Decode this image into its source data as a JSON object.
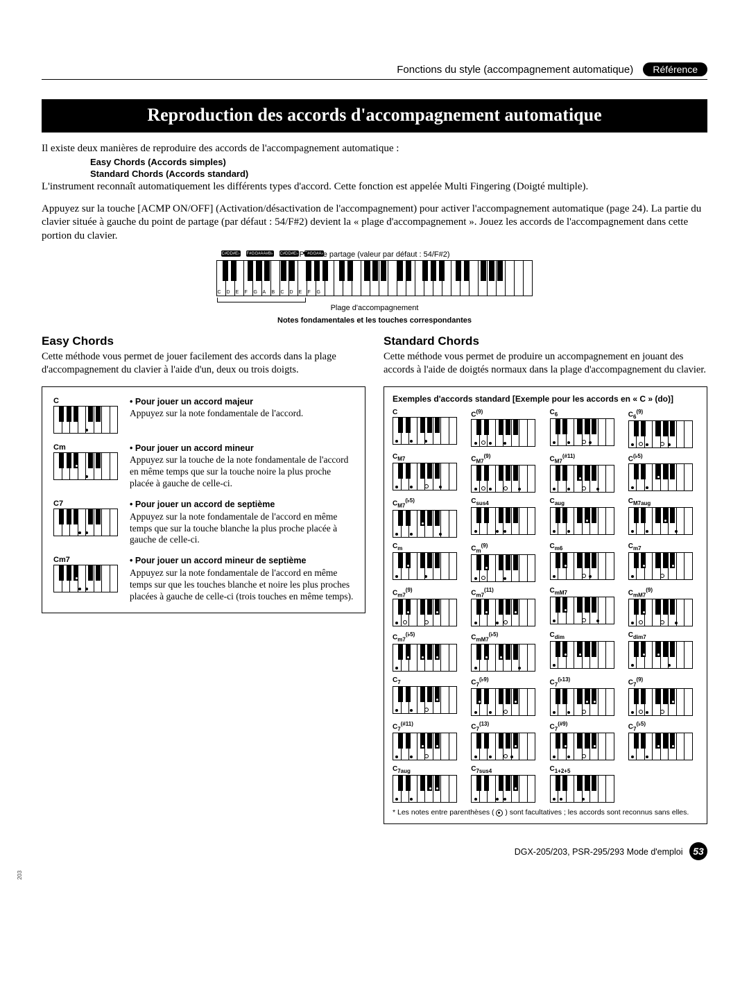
{
  "header": {
    "title": "Fonctions du style (accompagnement automatique)",
    "pill": "Référence"
  },
  "banner": "Reproduction des accords d'accompagnement automatique",
  "intro1": "Il existe deux manières de reproduire des accords de l'accompagnement automatique :",
  "intro_bold1": "Easy Chords (Accords simples)",
  "intro_bold2": "Standard Chords (Accords standard)",
  "intro2": "L'instrument reconnaît automatiquement les différents types d'accord. Cette fonction est appelée Multi Fingering (Doigté multiple).",
  "intro3": "Appuyez sur la touche [ACMP ON/OFF] (Activation/désactivation de l'accompagnement) pour activer l'accompagnement automatique (page 24). La partie du clavier située à gauche du point de partage (par défaut : 54/F#2) devient la « plage d'accompagnement ». Jouez les accords de l'accompagnement dans cette portion du clavier.",
  "kbd": {
    "caption_top": "Point de partage (valeur par défaut : 54/F#2)",
    "range": "Plage d'accompagnement",
    "bold_caption": "Notes fondamentales et les touches correspondantes"
  },
  "easy": {
    "heading": "Easy Chords",
    "sub": "Cette méthode vous permet de jouer facilement des accords dans la plage d'accompagnement du clavier à l'aide d'un, deux ou trois doigts.",
    "rows": [
      {
        "label": "C",
        "bullet": "• Pour jouer un accord majeur",
        "text": "Appuyez sur la note fondamentale de l'accord."
      },
      {
        "label": "Cm",
        "bullet": "• Pour jouer un accord mineur",
        "text": "Appuyez sur la touche de la note fondamentale de l'accord en même temps que sur la touche noire la plus proche placée à gauche de celle-ci."
      },
      {
        "label": "C7",
        "bullet": "• Pour jouer un accord de septième",
        "text": "Appuyez sur la note fondamentale de l'accord en même temps que sur la touche blanche la plus proche placée à gauche de celle-ci."
      },
      {
        "label": "Cm7",
        "bullet": "• Pour jouer un accord mineur de septième",
        "text": "Appuyez sur la note fondamentale de l'accord en même temps sur que les touches blanche et noire les plus proches placées à gauche de celle-ci (trois touches en même temps)."
      }
    ]
  },
  "standard": {
    "heading": "Standard Chords",
    "sub": "Cette méthode vous permet de produire un accompagnement en jouant des accords à l'aide de doigtés normaux dans la plage d'accompagnement du clavier.",
    "box_title": "Exemples d'accords standard [Exemple pour les accords en « C » (do)]",
    "footnote": "Les notes entre parenthèses ( ) sont facultatives ; les accords sont reconnus sans elles.",
    "chords": [
      {
        "n": "C",
        "d": [
          0,
          4,
          7
        ]
      },
      {
        "n": "C<sup>(9)</sup>",
        "d": [
          0,
          4,
          7
        ],
        "p": [
          2
        ]
      },
      {
        "n": "C<sub>6</sub>",
        "d": [
          0,
          4,
          9
        ],
        "p": [
          7
        ]
      },
      {
        "n": "C<sub>6</sub><sup>(9)</sup>",
        "d": [
          0,
          4,
          9
        ],
        "p": [
          2,
          7
        ]
      },
      {
        "n": "C<sub>M7</sub>",
        "d": [
          0,
          4,
          11
        ],
        "p": [
          7
        ]
      },
      {
        "n": "C<sub>M7</sub><sup>(9)</sup>",
        "d": [
          0,
          4,
          11
        ],
        "p": [
          2,
          7
        ]
      },
      {
        "n": "C<sub>M7</sub><sup>(#11)</sup>",
        "d": [
          0,
          4,
          6,
          11
        ],
        "p": [
          7
        ]
      },
      {
        "n": "C<sup>(♭5)</sup>",
        "d": [
          0,
          4,
          6
        ]
      },
      {
        "n": "C<sub>M7</sub><sup>(♭5)</sup>",
        "d": [
          0,
          4,
          6,
          11
        ]
      },
      {
        "n": "C<sub>sus4</sub>",
        "d": [
          0,
          5,
          7
        ]
      },
      {
        "n": "C<sub>aug</sub>",
        "d": [
          0,
          4,
          8
        ]
      },
      {
        "n": "C<sub>M7aug</sub>",
        "d": [
          0,
          4,
          8,
          11
        ]
      },
      {
        "n": "C<sub>m</sub>",
        "d": [
          0,
          3,
          7
        ]
      },
      {
        "n": "C<sub>m</sub><sup>(9)</sup>",
        "d": [
          0,
          3,
          7
        ],
        "p": [
          2
        ]
      },
      {
        "n": "C<sub>m6</sub>",
        "d": [
          0,
          3,
          9
        ],
        "p": [
          7
        ]
      },
      {
        "n": "C<sub>m7</sub>",
        "d": [
          0,
          3,
          10
        ],
        "p": [
          7
        ]
      },
      {
        "n": "C<sub>m7</sub><sup>(9)</sup>",
        "d": [
          0,
          3,
          10
        ],
        "p": [
          2,
          7
        ]
      },
      {
        "n": "C<sub>m7</sub><sup>(11)</sup>",
        "d": [
          0,
          3,
          5,
          10
        ],
        "p": [
          7
        ]
      },
      {
        "n": "C<sub>mM7</sub>",
        "d": [
          0,
          3,
          11
        ],
        "p": [
          7
        ]
      },
      {
        "n": "C<sub>mM7</sub><sup>(9)</sup>",
        "d": [
          0,
          3,
          11
        ],
        "p": [
          2,
          7
        ]
      },
      {
        "n": "C<sub>m7</sub><sup>(♭5)</sup>",
        "d": [
          0,
          3,
          6,
          10
        ]
      },
      {
        "n": "C<sub>mM7</sub><sup>(♭5)</sup>",
        "d": [
          0,
          3,
          6,
          11
        ]
      },
      {
        "n": "C<sub>dim</sub>",
        "d": [
          0,
          3,
          6
        ]
      },
      {
        "n": "C<sub>dim7</sub>",
        "d": [
          0,
          3,
          6,
          9
        ]
      },
      {
        "n": "C<sub>7</sub>",
        "d": [
          0,
          4,
          10
        ],
        "p": [
          7
        ]
      },
      {
        "n": "C<sub>7</sub><sup>(♭9)</sup>",
        "d": [
          0,
          1,
          4,
          10
        ],
        "p": [
          7
        ]
      },
      {
        "n": "C<sub>7</sub><sup>(♭13)</sup>",
        "d": [
          0,
          4,
          8,
          10
        ],
        "p": [
          7
        ]
      },
      {
        "n": "C<sub>7</sub><sup>(9)</sup>",
        "d": [
          0,
          4,
          10
        ],
        "p": [
          2,
          7
        ]
      },
      {
        "n": "C<sub>7</sub><sup>(#11)</sup>",
        "d": [
          0,
          4,
          6,
          10
        ],
        "p": [
          7
        ]
      },
      {
        "n": "C<sub>7</sub><sup>(13)</sup>",
        "d": [
          0,
          4,
          9,
          10
        ],
        "p": [
          7
        ]
      },
      {
        "n": "C<sub>7</sub><sup>(#9)</sup>",
        "d": [
          0,
          3,
          4,
          10
        ],
        "p": [
          7
        ]
      },
      {
        "n": "C<sub>7</sub><sup>(♭5)</sup>",
        "d": [
          0,
          4,
          6,
          10
        ]
      },
      {
        "n": "C<sub>7aug</sub>",
        "d": [
          0,
          4,
          8,
          10
        ]
      },
      {
        "n": "C<sub>7sus4</sub>",
        "d": [
          0,
          5,
          7,
          10
        ]
      },
      {
        "n": "C<sub>1+2+5</sub>",
        "d": [
          0,
          2,
          7
        ]
      }
    ]
  },
  "footer": {
    "manual": "DGX-205/203, PSR-295/293  Mode d'emploi",
    "page": "53",
    "side": "203"
  }
}
